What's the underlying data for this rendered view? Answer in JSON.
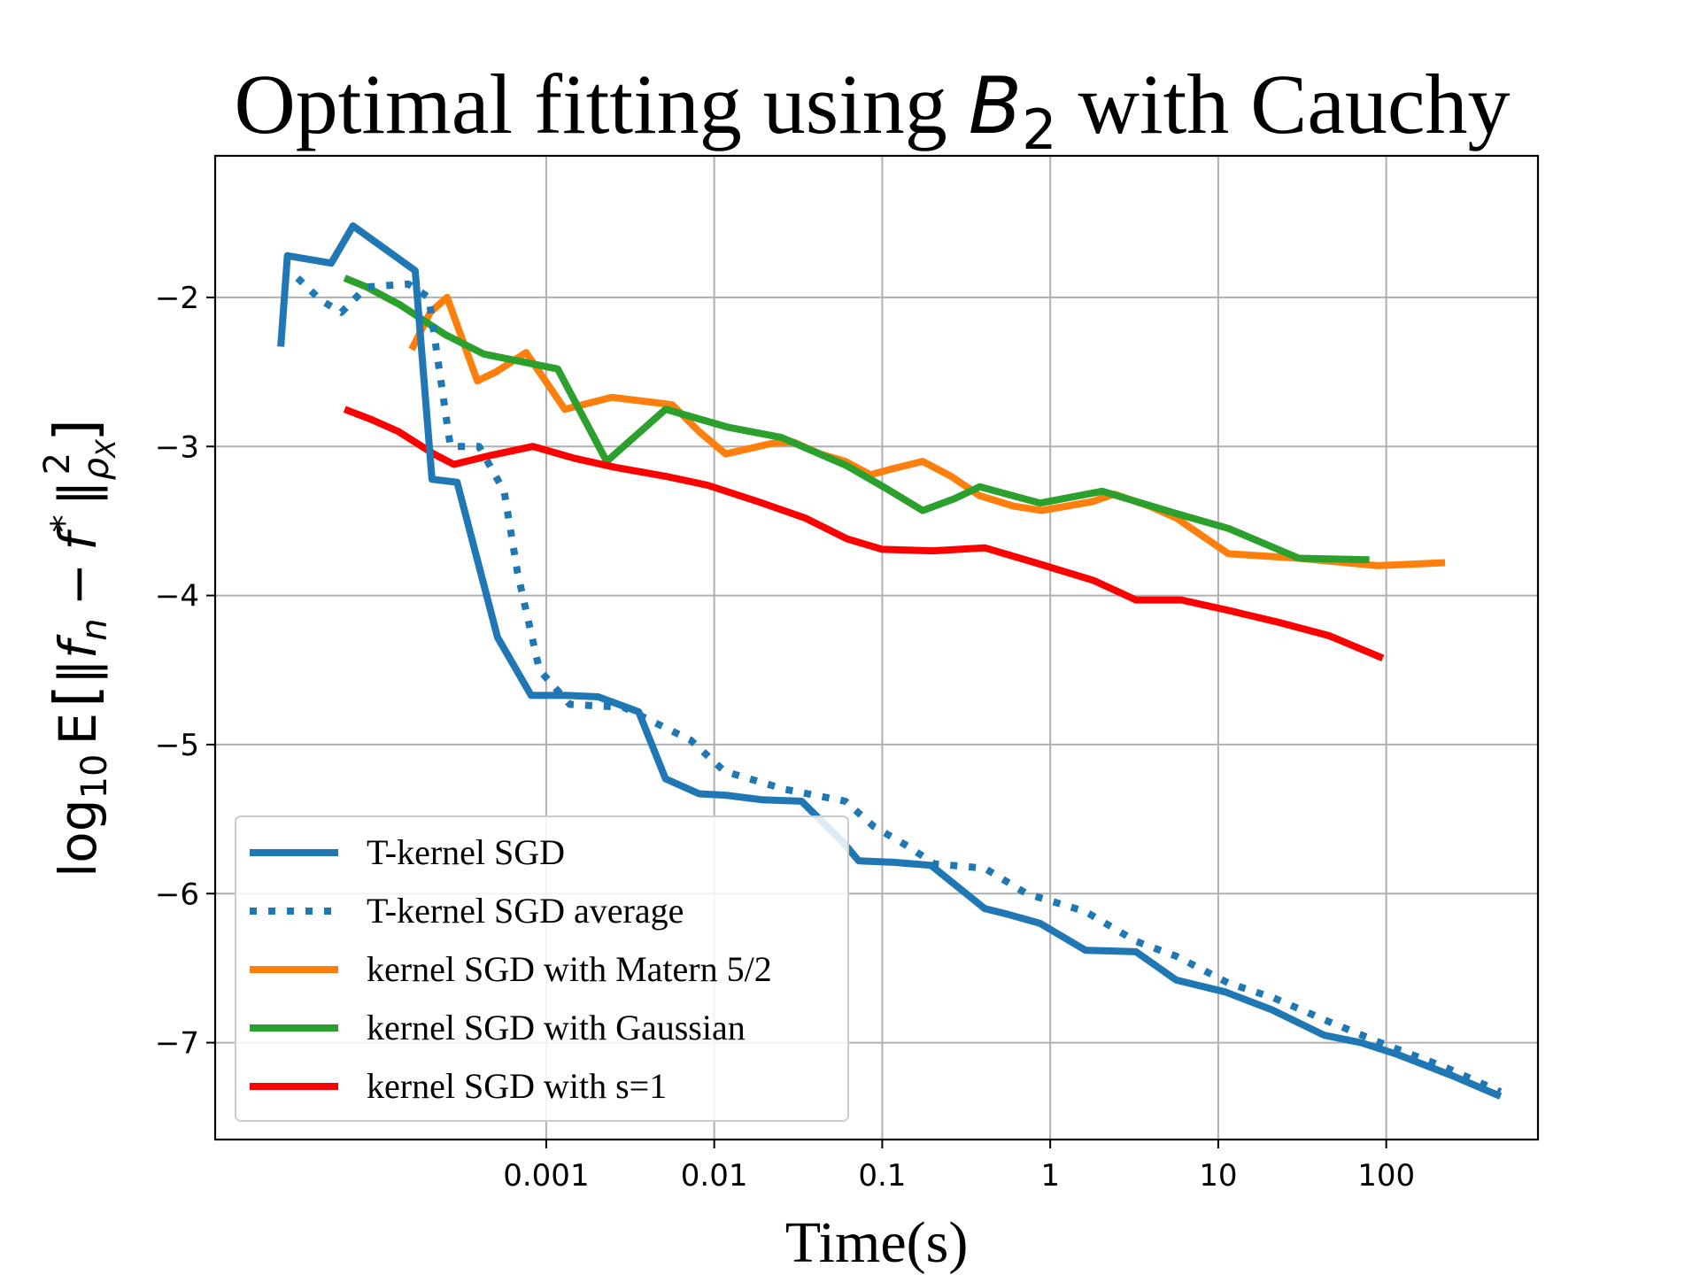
{
  "chart_data": {
    "type": "line",
    "title_main": "Optimal fitting using ",
    "title_math": "B",
    "title_math_sub": "2",
    "title_tail": " with Cauchy",
    "xlabel": "Time(s)",
    "ylabel": {
      "prefix": "log",
      "base": "10",
      "expectation": "E",
      "f": "f",
      "f_sub": "n",
      "minus": "−",
      "fstar": "f",
      "star": "*",
      "norm_sub": "ρ",
      "norm_sub_sub": "X",
      "norm_sup": "2"
    },
    "x_scale": "log",
    "xlim": [
      1.07e-05,
      800
    ],
    "ylim": [
      -7.65,
      -1.05
    ],
    "x_ticks": [
      {
        "value": 0.001,
        "label": "0.001"
      },
      {
        "value": 0.01,
        "label": "0.01"
      },
      {
        "value": 0.1,
        "label": "0.1"
      },
      {
        "value": 1,
        "label": "1"
      },
      {
        "value": 10,
        "label": "10"
      },
      {
        "value": 100,
        "label": "100"
      }
    ],
    "y_ticks": [
      {
        "value": -2,
        "label": "−2"
      },
      {
        "value": -3,
        "label": "−3"
      },
      {
        "value": -4,
        "label": "−4"
      },
      {
        "value": -5,
        "label": "−5"
      },
      {
        "value": -6,
        "label": "−6"
      },
      {
        "value": -7,
        "label": "−7"
      }
    ],
    "grid": true,
    "legend_position": "lower-left",
    "series": [
      {
        "name": "T-kernel SGD",
        "color": "#1f77b4",
        "style": "solid",
        "x": [
          2.63e-05,
          2.88e-05,
          5.25e-05,
          7.08e-05,
          0.000166,
          0.000209,
          0.000295,
          0.000513,
          0.000813,
          0.00132,
          0.00204,
          0.00355,
          0.00513,
          0.00813,
          0.0117,
          0.0191,
          0.0331,
          0.0589,
          0.0724,
          0.117,
          0.195,
          0.407,
          0.562,
          0.871,
          1.62,
          3.24,
          5.62,
          11.0,
          20.9,
          42.7,
          70.8,
          117,
          245,
          479
        ],
        "values": [
          -2.33,
          -1.72,
          -1.77,
          -1.52,
          -1.82,
          -3.22,
          -3.24,
          -4.28,
          -4.67,
          -4.67,
          -4.68,
          -4.78,
          -5.23,
          -5.33,
          -5.34,
          -5.37,
          -5.38,
          -5.66,
          -5.78,
          -5.79,
          -5.81,
          -6.1,
          -6.14,
          -6.2,
          -6.38,
          -6.39,
          -6.58,
          -6.66,
          -6.78,
          -6.95,
          -7.0,
          -7.08,
          -7.22,
          -7.36
        ]
      },
      {
        "name": "T-kernel SGD average",
        "color": "#1f77b4",
        "style": "dotted",
        "x": [
          3.31e-05,
          4.57e-05,
          6.03e-05,
          8.51e-05,
          0.000151,
          0.0002,
          0.000269,
          0.000398,
          0.000562,
          0.000676,
          0.000912,
          0.00138,
          0.00288,
          0.00724,
          0.0115,
          0.0263,
          0.0603,
          0.0891,
          0.141,
          0.204,
          0.407,
          0.724,
          1.62,
          3.24,
          5.62,
          11.5,
          21.4,
          45.7,
          102,
          219,
          479
        ],
        "values": [
          -1.87,
          -2.02,
          -2.1,
          -1.93,
          -1.91,
          -2.0,
          -3.0,
          -3.0,
          -3.3,
          -3.85,
          -4.5,
          -4.73,
          -4.75,
          -4.97,
          -5.18,
          -5.3,
          -5.38,
          -5.55,
          -5.68,
          -5.8,
          -5.83,
          -6.0,
          -6.12,
          -6.32,
          -6.42,
          -6.6,
          -6.7,
          -6.86,
          -7.02,
          -7.16,
          -7.33
        ]
      },
      {
        "name": "kernel SGD with Matern 5/2",
        "color": "#ff7f0e",
        "style": "solid",
        "x": [
          0.000158,
          0.000204,
          0.000257,
          0.000389,
          0.000501,
          0.000759,
          0.00129,
          0.00245,
          0.00562,
          0.00813,
          0.0117,
          0.0219,
          0.0295,
          0.0427,
          0.0603,
          0.0851,
          0.115,
          0.174,
          0.257,
          0.38,
          0.603,
          0.891,
          1.78,
          2.4,
          3.89,
          5.62,
          11.5,
          30.2,
          89.1,
          224
        ],
        "values": [
          -2.35,
          -2.1,
          -2.0,
          -2.56,
          -2.5,
          -2.37,
          -2.75,
          -2.67,
          -2.72,
          -2.9,
          -3.05,
          -2.98,
          -2.97,
          -3.05,
          -3.1,
          -3.19,
          -3.15,
          -3.1,
          -3.2,
          -3.33,
          -3.4,
          -3.43,
          -3.37,
          -3.32,
          -3.4,
          -3.48,
          -3.72,
          -3.75,
          -3.8,
          -3.78
        ]
      },
      {
        "name": "kernel SGD with Gaussian",
        "color": "#2ca02c",
        "style": "solid",
        "x": [
          6.31e-05,
          8.51e-05,
          0.000135,
          0.000251,
          0.000426,
          0.00117,
          0.00229,
          0.00513,
          0.012,
          0.0251,
          0.0617,
          0.105,
          0.174,
          0.269,
          0.38,
          0.871,
          2.04,
          5.62,
          11.5,
          30.2,
          79.4
        ],
        "values": [
          -1.87,
          -1.93,
          -2.05,
          -2.25,
          -2.38,
          -2.48,
          -3.1,
          -2.75,
          -2.87,
          -2.94,
          -3.13,
          -3.28,
          -3.43,
          -3.35,
          -3.27,
          -3.38,
          -3.3,
          -3.45,
          -3.55,
          -3.75,
          -3.76
        ]
      },
      {
        "name": "kernel SGD with s=1",
        "color": "#ff0000",
        "style": "solid",
        "x": [
          6.31e-05,
          9.12e-05,
          0.000132,
          0.000214,
          0.000282,
          0.000468,
          0.000832,
          0.00148,
          0.00257,
          0.00513,
          0.00912,
          0.0182,
          0.0347,
          0.0617,
          0.1,
          0.2,
          0.407,
          0.813,
          1.82,
          3.24,
          6.03,
          11.5,
          22.9,
          45.7,
          95.5
        ],
        "values": [
          -2.75,
          -2.82,
          -2.9,
          -3.05,
          -3.12,
          -3.06,
          -3.0,
          -3.08,
          -3.14,
          -3.2,
          -3.26,
          -3.37,
          -3.48,
          -3.62,
          -3.69,
          -3.7,
          -3.68,
          -3.78,
          -3.9,
          -4.03,
          -4.03,
          -4.1,
          -4.18,
          -4.27,
          -4.42
        ]
      }
    ]
  }
}
